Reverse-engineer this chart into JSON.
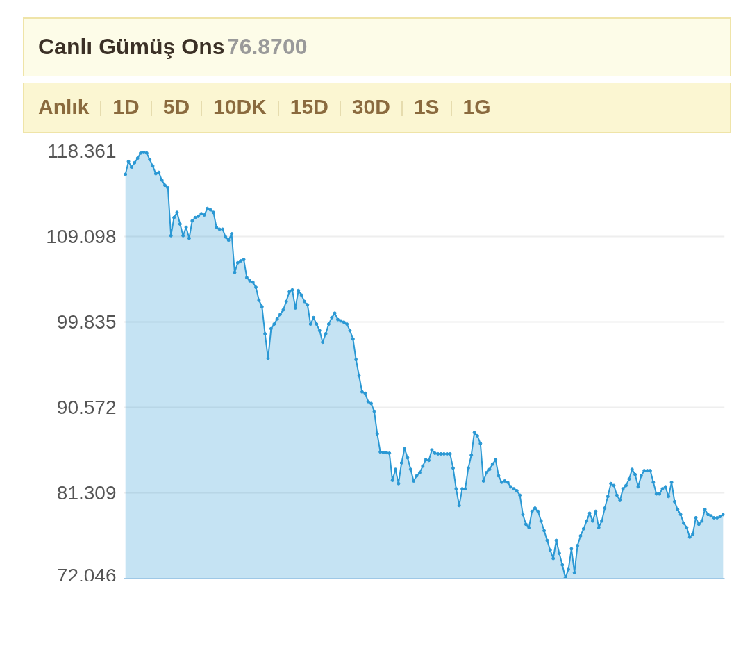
{
  "chart_data": {
    "type": "area",
    "title": "Canlı Gümüş Ons",
    "subtitle": "76.8700",
    "annotations": [
      "Anlık",
      "1D",
      "5D",
      "10DK",
      "15D",
      "30D",
      "1S",
      "1G"
    ],
    "categories": [
      null,
      null,
      null,
      null,
      null,
      null,
      null,
      null,
      null,
      null,
      null,
      null,
      null,
      null,
      null,
      null,
      null,
      null,
      null,
      null,
      null,
      null,
      null,
      null,
      null,
      null,
      null,
      null,
      null,
      null,
      null,
      null,
      null,
      null,
      null,
      null,
      null,
      null,
      null,
      null,
      null,
      null,
      null,
      null,
      null,
      null,
      null,
      null,
      null,
      null,
      null,
      null,
      null,
      null,
      null,
      null,
      null,
      null,
      null,
      null,
      null,
      null,
      null,
      null,
      null,
      null,
      null,
      null,
      null,
      null,
      null,
      null,
      null,
      null,
      null,
      null,
      null,
      null,
      null,
      null,
      null,
      null,
      null,
      null,
      null,
      null,
      null,
      null,
      null,
      null,
      null,
      null,
      null,
      null,
      null,
      null,
      null,
      null,
      null,
      null,
      null,
      null,
      null,
      null,
      null,
      null,
      null,
      null,
      null,
      null,
      null,
      null,
      null,
      null,
      null,
      null,
      null,
      null,
      null,
      null,
      null,
      null,
      null,
      null,
      null,
      null,
      null,
      null,
      null,
      null,
      null,
      null,
      null,
      null,
      null,
      null,
      null,
      null,
      null,
      null,
      null,
      null,
      null,
      null,
      null,
      null,
      null,
      null,
      null,
      null,
      null,
      null,
      null,
      null,
      null,
      null,
      null,
      null,
      null,
      null,
      null,
      null,
      null,
      null,
      null,
      null,
      null,
      null,
      null,
      null,
      null,
      null,
      null,
      null,
      null,
      null,
      null,
      null,
      null,
      null,
      null,
      null,
      null,
      null,
      null,
      null,
      null,
      null,
      null,
      null,
      null,
      null,
      null,
      null,
      null,
      null,
      null,
      null
    ],
    "series": [
      {
        "color": "#2a98d4",
        "values": [
          115.84,
          117.24,
          116.61,
          117.1,
          117.59,
          118.15,
          118.29,
          118.15,
          117.45,
          116.75,
          115.91,
          116.05,
          115.21,
          114.65,
          114.37,
          109.19,
          111.15,
          111.71,
          110.45,
          109.19,
          110.1,
          108.91,
          110.8,
          111.15,
          111.29,
          111.57,
          111.43,
          112.13,
          111.99,
          111.71,
          110.1,
          109.89,
          109.89,
          109.05,
          108.7,
          109.4,
          105.2,
          106.25,
          106.46,
          106.6,
          104.64,
          104.29,
          104.15,
          103.59,
          102.19,
          101.49,
          98.55,
          95.89,
          99.11,
          99.6,
          100.16,
          100.65,
          101.14,
          102.05,
          103.1,
          103.31,
          101.35,
          103.24,
          102.75,
          102.05,
          101.7,
          99.6,
          100.3,
          99.6,
          98.9,
          97.64,
          98.55,
          99.6,
          100.3,
          100.79,
          100.09,
          99.95,
          99.81,
          99.6,
          98.9,
          97.99,
          95.75,
          94.0,
          92.25,
          92.11,
          91.2,
          90.99,
          90.15,
          87.7,
          85.74,
          85.67,
          85.67,
          85.6,
          82.66,
          83.85,
          82.31,
          84.55,
          86.09,
          85.11,
          83.85,
          82.59,
          83.15,
          83.5,
          84.2,
          84.9,
          84.83,
          85.95,
          85.6,
          85.53,
          85.53,
          85.53,
          85.53,
          85.53,
          83.99,
          81.75,
          79.93,
          81.75,
          81.75,
          83.99,
          85.39,
          87.84,
          87.49,
          86.65,
          82.59,
          83.5,
          83.85,
          84.41,
          84.9,
          83.15,
          82.45,
          82.59,
          82.45,
          81.96,
          81.75,
          81.54,
          81.05,
          78.95,
          77.9,
          77.55,
          79.3,
          79.65,
          79.3,
          78.25,
          77.2,
          76.15,
          75.1,
          74.19,
          76.15,
          74.75,
          73.49,
          72.09,
          73.0,
          75.24,
          72.65,
          75.59,
          76.64,
          77.41,
          78.25,
          79.09,
          78.25,
          79.3,
          77.55,
          78.25,
          79.65,
          80.91,
          82.31,
          82.1,
          81.05,
          80.49,
          81.75,
          82.1,
          82.8,
          83.85,
          83.29,
          81.96,
          83.15,
          83.71,
          83.71,
          83.71,
          82.45,
          81.19,
          81.19,
          81.75,
          81.96,
          80.91,
          82.45,
          80.35,
          79.51,
          78.95,
          78.02,
          77.55,
          76.5,
          76.85,
          78.6,
          77.9,
          78.25,
          79.51,
          78.95,
          78.81,
          78.6,
          78.6,
          78.74,
          78.95
        ]
      }
    ],
    "ylim": [
      72.046,
      118.361
    ],
    "yticks": [
      72.046,
      81.309,
      90.572,
      99.835,
      109.098,
      118.361
    ],
    "grid": "y",
    "marker": "circle",
    "tick_labels": "y"
  }
}
